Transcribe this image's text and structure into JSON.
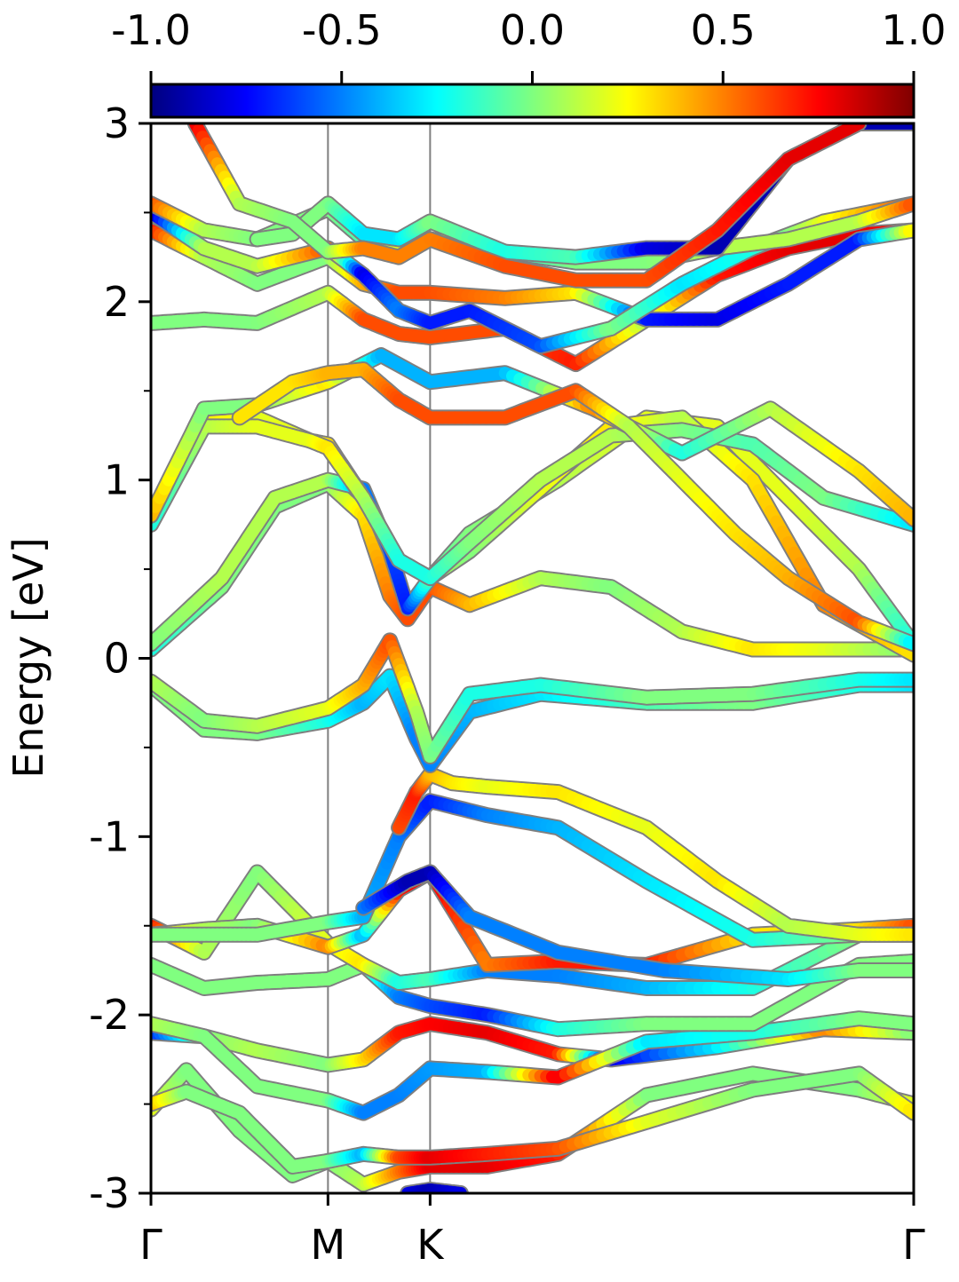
{
  "chart_data": {
    "type": "line",
    "ylabel": "Energy [eV]",
    "xlabel": "",
    "ylim": [
      -3,
      3
    ],
    "y_major_ticks": [
      -3,
      -2,
      -1,
      0,
      1,
      2,
      3
    ],
    "y_major_tick_labels": [
      "-3",
      "-2",
      "-1",
      "0",
      "1",
      "2",
      "3"
    ],
    "y_minor_ticks": [
      -2.5,
      -1.5,
      -0.5,
      0.5,
      1.5,
      2.5
    ],
    "k_path": {
      "labels": [
        "Γ",
        "M",
        "K",
        "Γ"
      ],
      "positions": [
        0,
        1.0,
        1.577,
        4.309
      ]
    },
    "colorbar": {
      "colormap": "jet",
      "range": [
        -1.0,
        1.0
      ],
      "tick_values": [
        -1.0,
        -0.5,
        0.0,
        0.5,
        1.0
      ],
      "tick_labels": [
        "-1.0",
        "-0.5",
        "0.0",
        "0.5",
        "1.0"
      ]
    },
    "vertical_lines_color": "#7f7f7f",
    "band_edge_color": "#7f7f7f",
    "series": [
      {
        "x": [
          0,
          0.2,
          0.5,
          0.8,
          1.0,
          1.2,
          1.4,
          1.577,
          1.9,
          2.3,
          2.8,
          3.4,
          4.0,
          4.309
        ],
        "y": [
          -2.53,
          -2.31,
          -2.65,
          -2.9,
          -2.82,
          -2.95,
          -2.88,
          -2.85,
          -2.85,
          -2.78,
          -2.45,
          -2.33,
          -2.42,
          -2.5
        ],
        "c": [
          0.2,
          0.0,
          0.0,
          0.0,
          0.0,
          0.1,
          0.5,
          0.8,
          0.8,
          0.7,
          0.0,
          0.0,
          0.0,
          0.2
        ]
      },
      {
        "x": [
          0,
          0.2,
          0.5,
          0.8,
          1.0,
          1.2,
          1.4,
          1.577,
          1.9,
          2.3,
          2.8,
          3.4,
          4.0,
          4.309
        ],
        "y": [
          -2.5,
          -2.43,
          -2.55,
          -2.85,
          -2.82,
          -2.78,
          -2.8,
          -2.8,
          -2.78,
          -2.75,
          -2.6,
          -2.42,
          -2.33,
          -2.55
        ],
        "c": [
          0.4,
          0.0,
          0.0,
          0.0,
          0.0,
          -0.4,
          0.6,
          0.8,
          0.7,
          0.6,
          0.2,
          0.0,
          0.0,
          0.3
        ]
      },
      {
        "x": [
          1.45,
          1.577,
          1.75
        ],
        "y": [
          -3.0,
          -2.98,
          -3.0
        ],
        "c": [
          -0.8,
          -0.9,
          -0.8
        ]
      },
      {
        "x": [
          0,
          0.3,
          0.6,
          1.0,
          1.2,
          1.4,
          1.577,
          1.9,
          2.3,
          2.6,
          3.2,
          3.8,
          4.309
        ],
        "y": [
          -2.1,
          -2.12,
          -2.2,
          -2.28,
          -2.25,
          -2.1,
          -2.05,
          -2.1,
          -2.22,
          -2.25,
          -2.18,
          -2.08,
          -2.1
        ],
        "c": [
          -0.7,
          0.0,
          0.1,
          0.0,
          0.3,
          0.7,
          0.75,
          0.8,
          0.7,
          -0.8,
          -0.3,
          0.5,
          0.0
        ]
      },
      {
        "x": [
          0,
          0.3,
          0.6,
          1.0,
          1.2,
          1.4,
          1.577,
          1.9,
          2.3,
          2.8,
          3.4,
          4.0,
          4.309
        ],
        "y": [
          -2.05,
          -2.12,
          -2.4,
          -2.48,
          -2.55,
          -2.45,
          -2.3,
          -2.32,
          -2.35,
          -2.15,
          -2.1,
          -2.02,
          -2.05
        ],
        "c": [
          0.1,
          0.0,
          0.0,
          0.0,
          -0.5,
          -0.5,
          -0.45,
          -0.4,
          0.8,
          -0.3,
          -0.2,
          0.0,
          0.0
        ]
      },
      {
        "x": [
          0,
          0.3,
          0.6,
          1.0,
          1.2,
          1.4,
          1.577,
          1.9,
          2.3,
          2.8,
          3.4,
          4.0,
          4.309
        ],
        "y": [
          -1.72,
          -1.85,
          -1.82,
          -1.8,
          -1.72,
          -1.9,
          -1.95,
          -2.0,
          -2.08,
          -2.05,
          -2.05,
          -1.72,
          -1.7
        ],
        "c": [
          0.0,
          0.0,
          0.0,
          0.0,
          0.0,
          -0.5,
          -0.6,
          -0.7,
          -0.2,
          0.0,
          0.0,
          0.0,
          0.0
        ]
      },
      {
        "x": [
          0,
          0.3,
          0.6,
          1.0,
          1.2,
          1.4,
          1.577,
          1.9,
          2.3,
          2.8,
          3.4,
          4.0,
          4.309
        ],
        "y": [
          -1.5,
          -1.65,
          -1.2,
          -1.6,
          -1.72,
          -1.82,
          -1.8,
          -1.75,
          -1.78,
          -1.85,
          -1.85,
          -1.55,
          -1.55
        ],
        "c": [
          0.7,
          0.1,
          0.0,
          0.2,
          0.3,
          -0.2,
          -0.1,
          -0.5,
          -0.5,
          -0.4,
          -0.2,
          0.0,
          0.5
        ]
      },
      {
        "x": [
          0,
          0.3,
          0.6,
          1.0,
          1.2,
          1.4,
          1.577,
          1.9,
          2.3,
          2.8,
          3.4,
          4.0,
          4.309
        ],
        "y": [
          -1.55,
          -1.52,
          -1.5,
          -1.62,
          -1.55,
          -1.3,
          -1.2,
          -1.72,
          -1.7,
          -1.72,
          -1.55,
          -1.52,
          -1.5
        ],
        "c": [
          0.3,
          0.1,
          0.0,
          0.5,
          -0.4,
          0.7,
          0.8,
          0.5,
          0.7,
          0.7,
          0.3,
          0.3,
          0.6
        ]
      },
      {
        "x": [
          0,
          0.3,
          0.6,
          1.0,
          1.2,
          1.4,
          1.577,
          1.9,
          2.3,
          2.8,
          3.4,
          4.0,
          4.309
        ],
        "y": [
          -1.55,
          -1.55,
          -1.55,
          -1.48,
          -1.45,
          -1.0,
          -0.8,
          -0.88,
          -0.95,
          -1.25,
          -1.58,
          -1.55,
          -1.55
        ],
        "c": [
          0.0,
          0.0,
          0.0,
          0.0,
          -0.4,
          -0.5,
          -0.7,
          -0.5,
          -0.4,
          -0.3,
          -0.2,
          0.0,
          0.0
        ]
      },
      {
        "x": [
          1.4,
          1.5,
          1.577,
          1.7,
          1.9,
          2.3,
          2.8,
          3.2,
          3.6,
          4.0,
          4.309
        ],
        "y": [
          -0.95,
          -0.75,
          -0.65,
          -0.7,
          -0.72,
          -0.75,
          -0.95,
          -1.25,
          -1.5,
          -1.55,
          -1.55
        ],
        "c": [
          0.6,
          0.7,
          0.4,
          0.3,
          0.2,
          0.3,
          0.2,
          0.3,
          0.1,
          0.2,
          0.3
        ]
      },
      {
        "x": [
          1.2,
          1.45,
          1.577,
          1.8,
          2.3,
          2.9,
          3.6,
          4.0,
          4.309
        ],
        "y": [
          -1.4,
          -1.25,
          -1.2,
          -1.45,
          -1.65,
          -1.75,
          -1.8,
          -1.75,
          -1.75
        ],
        "c": [
          -0.5,
          -0.9,
          -0.9,
          -0.5,
          -0.5,
          -0.5,
          -0.3,
          0.0,
          0.0
        ]
      },
      {
        "x": [
          0,
          0.3,
          0.6,
          1.0,
          1.2,
          1.35,
          1.5,
          1.577,
          1.8,
          2.2,
          2.8,
          3.4,
          4.0,
          4.309
        ],
        "y": [
          -0.15,
          -0.4,
          -0.42,
          -0.35,
          -0.25,
          -0.1,
          -0.45,
          -0.6,
          -0.3,
          -0.2,
          -0.25,
          -0.25,
          -0.15,
          -0.15
        ],
        "c": [
          0.0,
          0.0,
          0.0,
          -0.2,
          -0.4,
          -0.3,
          -0.5,
          -0.5,
          -0.4,
          -0.3,
          -0.1,
          0.0,
          -0.2,
          -0.3
        ]
      },
      {
        "x": [
          0,
          0.3,
          0.6,
          1.0,
          1.2,
          1.35,
          1.5,
          1.577,
          1.8,
          2.2,
          2.8,
          3.4,
          4.0,
          4.309
        ],
        "y": [
          -0.13,
          -0.35,
          -0.38,
          -0.28,
          -0.15,
          0.1,
          -0.3,
          -0.55,
          -0.2,
          -0.15,
          -0.22,
          -0.2,
          -0.12,
          -0.12
        ],
        "c": [
          0.1,
          0.0,
          0.1,
          0.2,
          0.4,
          0.6,
          0.1,
          0.0,
          -0.2,
          -0.2,
          0.0,
          0.0,
          -0.2,
          -0.3
        ]
      },
      {
        "x": [
          0,
          0.4,
          0.7,
          1.0,
          1.2,
          1.35,
          1.45,
          1.577,
          1.8,
          2.2,
          2.6,
          3.0,
          3.4,
          3.8,
          4.309
        ],
        "y": [
          0.05,
          0.4,
          0.85,
          0.98,
          0.8,
          0.35,
          0.22,
          0.4,
          0.3,
          0.45,
          0.4,
          0.15,
          0.05,
          0.05,
          0.05
        ],
        "c": [
          -0.2,
          0.0,
          0.0,
          0.0,
          0.3,
          0.5,
          0.6,
          0.6,
          0.4,
          0.1,
          0.0,
          0.1,
          0.3,
          0.2,
          0.0
        ]
      },
      {
        "x": [
          0,
          0.4,
          0.7,
          1.0,
          1.2,
          1.35,
          1.45,
          1.577,
          1.8,
          2.3,
          2.8,
          3.2,
          3.6,
          4.0,
          4.309
        ],
        "y": [
          0.08,
          0.45,
          0.9,
          1.0,
          0.95,
          0.6,
          0.28,
          0.45,
          0.7,
          1.0,
          1.35,
          1.3,
          0.9,
          0.5,
          0.08
        ],
        "c": [
          0.0,
          0.1,
          0.1,
          0.1,
          -0.5,
          -0.6,
          -0.7,
          -0.1,
          0.0,
          0.1,
          0.2,
          0.2,
          0.2,
          0.1,
          -0.2
        ]
      },
      {
        "x": [
          0,
          0.3,
          0.6,
          0.9,
          1.0,
          1.2,
          1.4,
          1.577,
          1.8,
          2.2,
          2.6,
          3.0,
          3.4,
          3.8,
          4.309
        ],
        "y": [
          0.78,
          1.35,
          1.35,
          1.22,
          1.2,
          0.9,
          0.55,
          0.45,
          0.6,
          0.95,
          1.3,
          1.35,
          1.0,
          0.3,
          0.02
        ],
        "c": [
          0.3,
          0.3,
          0.2,
          0.2,
          0.3,
          0.7,
          0.7,
          0.1,
          0.0,
          0.2,
          0.3,
          0.1,
          0.3,
          0.5,
          0.3
        ]
      },
      {
        "x": [
          0,
          0.3,
          0.6,
          0.9,
          1.0,
          1.2,
          1.4,
          1.577,
          1.8,
          2.2,
          2.6,
          3.0,
          3.4,
          3.8,
          4.309
        ],
        "y": [
          0.75,
          1.3,
          1.3,
          1.22,
          1.18,
          0.9,
          0.55,
          0.45,
          0.65,
          1.0,
          1.25,
          1.28,
          1.2,
          0.9,
          0.75
        ],
        "c": [
          -0.2,
          0.1,
          0.2,
          0.2,
          0.3,
          0.1,
          -0.2,
          -0.2,
          0.0,
          0.1,
          0.1,
          0.0,
          -0.1,
          0.0,
          -0.3
        ]
      },
      {
        "x": [
          0,
          0.3,
          0.6,
          1.0,
          1.3,
          1.577,
          2.0,
          2.5,
          3.0,
          3.5,
          4.0,
          4.309
        ],
        "y": [
          0.8,
          1.4,
          1.42,
          1.55,
          1.7,
          1.55,
          1.6,
          1.4,
          1.15,
          1.4,
          1.05,
          0.78
        ],
        "c": [
          0.4,
          0.0,
          0.0,
          0.3,
          -0.4,
          -0.4,
          -0.4,
          0.5,
          -0.2,
          0.1,
          0.3,
          0.4
        ]
      },
      {
        "x": [
          0.5,
          0.8,
          1.0,
          1.2,
          1.4,
          1.577,
          2.0,
          2.4,
          2.7,
          3.0,
          3.3,
          3.6,
          4.0,
          4.309
        ],
        "y": [
          1.35,
          1.55,
          1.6,
          1.62,
          1.45,
          1.35,
          1.35,
          1.5,
          1.3,
          1.0,
          0.7,
          0.45,
          0.2,
          0.08
        ],
        "c": [
          0.3,
          0.3,
          0.4,
          0.4,
          0.6,
          0.6,
          0.6,
          0.6,
          0.1,
          0.2,
          0.3,
          0.4,
          0.6,
          -0.3
        ]
      },
      {
        "x": [
          0,
          0.3,
          0.6,
          1.0,
          1.2,
          1.4,
          1.577,
          2.0,
          2.4,
          2.8,
          3.2,
          3.6,
          4.0,
          4.309
        ],
        "y": [
          1.88,
          1.9,
          1.88,
          2.05,
          1.9,
          1.82,
          1.8,
          1.85,
          1.65,
          1.9,
          2.15,
          2.3,
          2.38,
          2.4
        ],
        "c": [
          0.0,
          0.0,
          0.0,
          0.1,
          0.6,
          0.6,
          0.6,
          0.6,
          0.7,
          0.1,
          0.7,
          0.8,
          0.8,
          0.7
        ]
      },
      {
        "x": [
          0,
          0.3,
          0.6,
          1.0,
          1.2,
          1.4,
          1.577,
          2.0,
          2.4,
          2.8,
          3.2,
          3.6,
          4.0,
          4.309
        ],
        "y": [
          2.4,
          2.25,
          2.1,
          2.25,
          2.1,
          2.05,
          2.05,
          2.02,
          2.05,
          1.9,
          1.9,
          2.1,
          2.35,
          2.4
        ],
        "c": [
          0.7,
          0.1,
          0.0,
          0.0,
          0.4,
          0.6,
          0.6,
          0.5,
          0.3,
          -0.7,
          -0.8,
          -0.7,
          -0.7,
          0.3
        ]
      },
      {
        "x": [
          0,
          0.3,
          0.6,
          1.0,
          1.2,
          1.4,
          1.577,
          1.8,
          2.2,
          2.6,
          3.0,
          3.4,
          3.8,
          4.309
        ],
        "y": [
          2.5,
          2.3,
          2.2,
          2.3,
          2.15,
          1.95,
          1.88,
          1.95,
          1.75,
          1.85,
          2.1,
          2.3,
          2.45,
          2.55
        ],
        "c": [
          -0.9,
          0.1,
          0.1,
          0.6,
          -0.8,
          -0.5,
          -0.7,
          -0.7,
          -0.6,
          0.0,
          -0.3,
          -0.2,
          0.2,
          0.6
        ]
      },
      {
        "x": [
          0,
          0.3,
          0.6,
          1.0,
          1.2,
          1.4,
          1.577,
          2.0,
          2.4,
          2.8,
          3.2,
          3.6,
          4.0,
          4.309
        ],
        "y": [
          2.55,
          2.4,
          2.35,
          2.52,
          2.35,
          2.32,
          2.35,
          2.28,
          2.22,
          2.22,
          2.3,
          2.35,
          2.45,
          2.55
        ],
        "c": [
          0.6,
          0.1,
          0.0,
          0.0,
          -0.1,
          0.2,
          0.3,
          -0.2,
          0.0,
          0.0,
          0.1,
          0.1,
          0.1,
          0.6
        ]
      },
      {
        "x": [
          0.6,
          0.8,
          1.0,
          1.2,
          1.4,
          1.577,
          2.0,
          2.4,
          2.8,
          3.2,
          3.6,
          4.0,
          4.309
        ],
        "y": [
          2.35,
          2.38,
          2.55,
          2.38,
          2.35,
          2.45,
          2.28,
          2.25,
          2.3,
          2.3,
          2.8,
          3.0,
          3.0
        ],
        "c": [
          0.0,
          0.0,
          0.0,
          -0.3,
          -0.3,
          0.0,
          -0.2,
          -0.1,
          -0.8,
          -0.9,
          -0.9,
          -0.9,
          -0.9
        ]
      },
      {
        "x": [
          0.25,
          0.5,
          0.8,
          1.0,
          1.2,
          1.4,
          1.577,
          2.0,
          2.4,
          2.8,
          3.2,
          3.6,
          4.0
        ],
        "y": [
          3.0,
          2.55,
          2.45,
          2.28,
          2.3,
          2.25,
          2.35,
          2.2,
          2.12,
          2.12,
          2.4,
          2.8,
          3.0
        ],
        "c": [
          0.8,
          0.1,
          0.0,
          0.0,
          0.5,
          0.5,
          0.5,
          0.6,
          0.6,
          0.6,
          0.7,
          0.8,
          0.8
        ]
      }
    ]
  }
}
